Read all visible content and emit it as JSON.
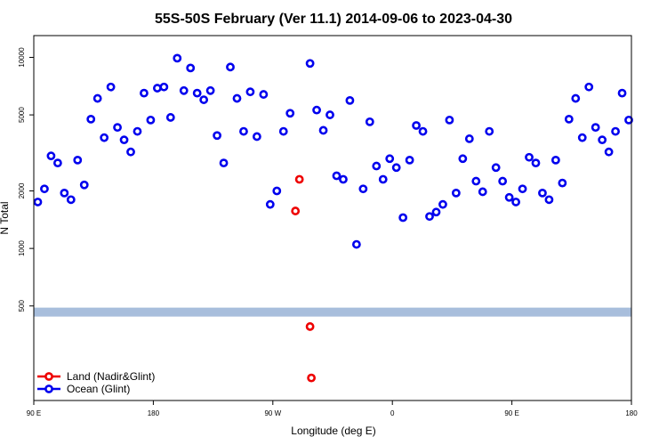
{
  "chart_data": {
    "type": "scatter",
    "title": "55S-50S February (Ver 11.1)   2014-09-06 to 2023-04-30",
    "xlabel": "Longitude (deg E)",
    "ylabel": "N Total",
    "x_ticks": [
      {
        "pos": 90,
        "label": "90 E"
      },
      {
        "pos": 180,
        "label": "180"
      },
      {
        "pos": 270,
        "label": "90 W"
      },
      {
        "pos": 360,
        "label": "0"
      },
      {
        "pos": 450,
        "label": "90 E"
      },
      {
        "pos": 540,
        "label": "180"
      }
    ],
    "y_ticks": [
      500,
      1000,
      2000,
      5000,
      10000
    ],
    "y_scale": "log",
    "xlim": [
      90,
      540
    ],
    "ylim": [
      160,
      13000
    ],
    "threshold_band": {
      "from": 440,
      "to": 490,
      "color": "#a8bedc"
    },
    "legend_position": "bottom-left",
    "series": [
      {
        "name": "Ocean (Glint)",
        "color": "#0000ee",
        "points": [
          [
            93,
            1750
          ],
          [
            98,
            2050
          ],
          [
            103,
            3050
          ],
          [
            108,
            2800
          ],
          [
            113,
            1950
          ],
          [
            118,
            1800
          ],
          [
            123,
            2900
          ],
          [
            128,
            2150
          ],
          [
            133,
            4750
          ],
          [
            138,
            6100
          ],
          [
            143,
            3800
          ],
          [
            148,
            7000
          ],
          [
            153,
            4300
          ],
          [
            158,
            3700
          ],
          [
            163,
            3200
          ],
          [
            168,
            4100
          ],
          [
            173,
            6500
          ],
          [
            178,
            4700
          ],
          [
            183,
            6900
          ],
          [
            188,
            7000
          ],
          [
            193,
            4850
          ],
          [
            198,
            9900
          ],
          [
            203,
            6700
          ],
          [
            208,
            8800
          ],
          [
            213,
            6500
          ],
          [
            218,
            6000
          ],
          [
            223,
            6700
          ],
          [
            228,
            3900
          ],
          [
            233,
            2800
          ],
          [
            238,
            8900
          ],
          [
            243,
            6100
          ],
          [
            248,
            4100
          ],
          [
            253,
            6600
          ],
          [
            258,
            3850
          ],
          [
            263,
            6400
          ],
          [
            268,
            1700
          ],
          [
            273,
            2000
          ],
          [
            278,
            4100
          ],
          [
            283,
            5100
          ],
          [
            298,
            9300
          ],
          [
            303,
            5300
          ],
          [
            308,
            4150
          ],
          [
            313,
            5000
          ],
          [
            318,
            2400
          ],
          [
            323,
            2300
          ],
          [
            328,
            5950
          ],
          [
            333,
            1050
          ],
          [
            338,
            2050
          ],
          [
            343,
            4600
          ],
          [
            348,
            2700
          ],
          [
            353,
            2300
          ],
          [
            358,
            2950
          ],
          [
            363,
            2650
          ],
          [
            368,
            1450
          ],
          [
            373,
            2900
          ],
          [
            378,
            4400
          ],
          [
            383,
            4100
          ],
          [
            388,
            1470
          ],
          [
            393,
            1550
          ],
          [
            398,
            1700
          ],
          [
            403,
            4700
          ],
          [
            408,
            1950
          ],
          [
            413,
            2950
          ],
          [
            418,
            3750
          ],
          [
            423,
            2250
          ],
          [
            428,
            1980
          ],
          [
            433,
            4100
          ],
          [
            438,
            2650
          ],
          [
            443,
            2250
          ],
          [
            448,
            1850
          ],
          [
            453,
            1750
          ],
          [
            458,
            2050
          ],
          [
            463,
            3000
          ],
          [
            468,
            2800
          ],
          [
            473,
            1950
          ],
          [
            478,
            1800
          ],
          [
            483,
            2900
          ],
          [
            488,
            2200
          ],
          [
            493,
            4750
          ],
          [
            498,
            6100
          ],
          [
            503,
            3800
          ],
          [
            508,
            7000
          ],
          [
            513,
            4300
          ],
          [
            518,
            3700
          ],
          [
            523,
            3200
          ],
          [
            528,
            4100
          ],
          [
            533,
            6500
          ],
          [
            538,
            4700
          ]
        ]
      },
      {
        "name": "Land (Nadir&Glint)",
        "color": "#ee0000",
        "points": [
          [
            287,
            1570
          ],
          [
            290,
            2300
          ],
          [
            298,
            390
          ],
          [
            299,
            210
          ]
        ]
      }
    ]
  }
}
